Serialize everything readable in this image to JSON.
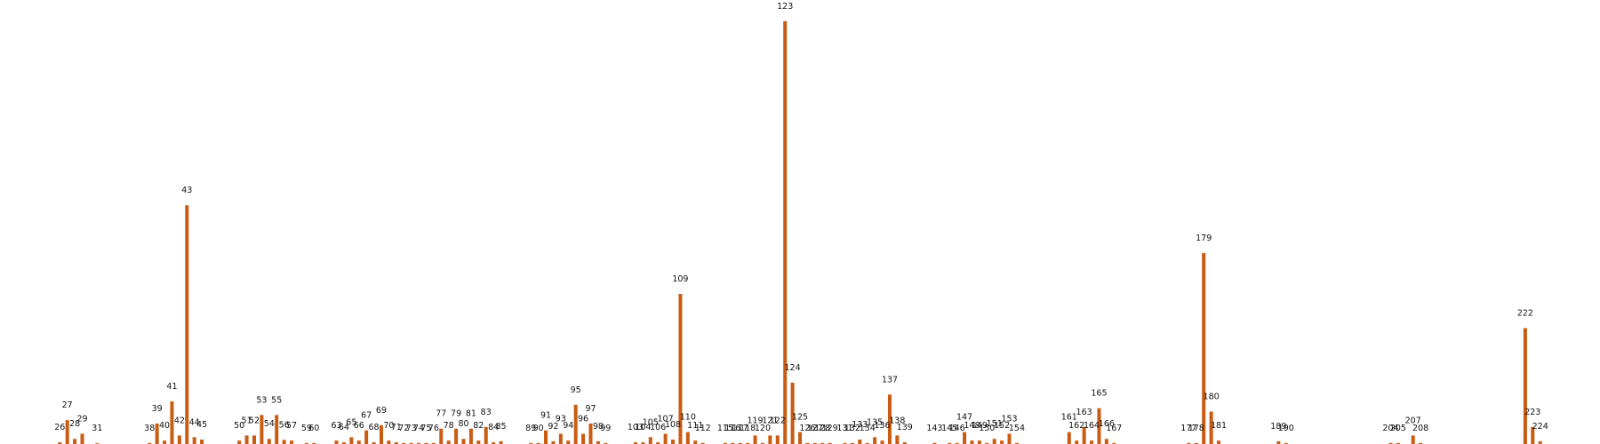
{
  "chart_data": {
    "type": "bar",
    "title": "",
    "xlabel": "",
    "ylabel": "",
    "bar_color": "#c95c12",
    "grid": false,
    "axes_visible": false,
    "xlim": [
      18,
      232
    ],
    "ylim": [
      0,
      125
    ],
    "bars": [
      {
        "x": 26,
        "value": 0.5,
        "label": "26"
      },
      {
        "x": 27,
        "value": 7,
        "label": "27"
      },
      {
        "x": 28,
        "value": 1.5,
        "label": "28"
      },
      {
        "x": 29,
        "value": 3,
        "label": "29"
      },
      {
        "x": 31,
        "value": 0,
        "label": "31"
      },
      {
        "x": 38,
        "value": 0.3,
        "label": "38"
      },
      {
        "x": 39,
        "value": 6,
        "label": "39"
      },
      {
        "x": 40,
        "value": 1,
        "label": "40"
      },
      {
        "x": 41,
        "value": 12.5,
        "label": "41"
      },
      {
        "x": 42,
        "value": 2.5,
        "label": "42"
      },
      {
        "x": 43,
        "value": 70,
        "label": "43"
      },
      {
        "x": 44,
        "value": 2,
        "label": "44"
      },
      {
        "x": 45,
        "value": 1.3,
        "label": "45"
      },
      {
        "x": 50,
        "value": 1,
        "label": "50"
      },
      {
        "x": 51,
        "value": 2.5,
        "label": "51"
      },
      {
        "x": 52,
        "value": 2.5,
        "label": "52"
      },
      {
        "x": 53,
        "value": 8.5,
        "label": "53"
      },
      {
        "x": 54,
        "value": 1.5,
        "label": "54"
      },
      {
        "x": 55,
        "value": 8.5,
        "label": "55"
      },
      {
        "x": 56,
        "value": 1.2,
        "label": "56"
      },
      {
        "x": 57,
        "value": 1,
        "label": "57"
      },
      {
        "x": 59,
        "value": 0.3,
        "label": "59"
      },
      {
        "x": 60,
        "value": 0.3,
        "label": "60"
      },
      {
        "x": 63,
        "value": 1,
        "label": "63"
      },
      {
        "x": 64,
        "value": 0.5,
        "label": "64"
      },
      {
        "x": 65,
        "value": 2,
        "label": "65"
      },
      {
        "x": 66,
        "value": 1,
        "label": "66"
      },
      {
        "x": 67,
        "value": 4,
        "label": "67"
      },
      {
        "x": 68,
        "value": 0.5,
        "label": "68"
      },
      {
        "x": 69,
        "value": 5.5,
        "label": "69"
      },
      {
        "x": 70,
        "value": 1,
        "label": "70"
      },
      {
        "x": 71,
        "value": 0.5,
        "label": "71"
      },
      {
        "x": 72,
        "value": 0.3,
        "label": "72"
      },
      {
        "x": 73,
        "value": 0.3,
        "label": "73"
      },
      {
        "x": 74,
        "value": 0.3,
        "label": "74"
      },
      {
        "x": 75,
        "value": 0.3,
        "label": "75"
      },
      {
        "x": 76,
        "value": 0.3,
        "label": "76"
      },
      {
        "x": 77,
        "value": 4.5,
        "label": "77"
      },
      {
        "x": 78,
        "value": 1,
        "label": "78"
      },
      {
        "x": 79,
        "value": 4.5,
        "label": "79"
      },
      {
        "x": 80,
        "value": 1.5,
        "label": "80"
      },
      {
        "x": 81,
        "value": 4.5,
        "label": "81"
      },
      {
        "x": 82,
        "value": 1,
        "label": "82"
      },
      {
        "x": 83,
        "value": 5,
        "label": "83"
      },
      {
        "x": 84,
        "value": 0.5,
        "label": "84"
      },
      {
        "x": 85,
        "value": 0.8,
        "label": "85"
      },
      {
        "x": 89,
        "value": 0.3,
        "label": "89"
      },
      {
        "x": 90,
        "value": 0.3,
        "label": "90"
      },
      {
        "x": 91,
        "value": 4,
        "label": "91"
      },
      {
        "x": 92,
        "value": 0.8,
        "label": "92"
      },
      {
        "x": 93,
        "value": 3,
        "label": "93"
      },
      {
        "x": 94,
        "value": 1,
        "label": "94"
      },
      {
        "x": 95,
        "value": 11.5,
        "label": "95"
      },
      {
        "x": 96,
        "value": 3,
        "label": "96"
      },
      {
        "x": 97,
        "value": 6,
        "label": "97"
      },
      {
        "x": 98,
        "value": 0.8,
        "label": "98"
      },
      {
        "x": 99,
        "value": 0.3,
        "label": "99"
      },
      {
        "x": 103,
        "value": 0.5,
        "label": "103"
      },
      {
        "x": 104,
        "value": 0.5,
        "label": "104"
      },
      {
        "x": 105,
        "value": 2,
        "label": "105"
      },
      {
        "x": 106,
        "value": 0.5,
        "label": "106"
      },
      {
        "x": 107,
        "value": 3,
        "label": "107"
      },
      {
        "x": 108,
        "value": 1.3,
        "label": "108"
      },
      {
        "x": 109,
        "value": 44,
        "label": "109"
      },
      {
        "x": 110,
        "value": 3.5,
        "label": "110"
      },
      {
        "x": 111,
        "value": 1,
        "label": "111"
      },
      {
        "x": 112,
        "value": 0.3,
        "label": "112"
      },
      {
        "x": 115,
        "value": 0.3,
        "label": "115"
      },
      {
        "x": 116,
        "value": 0.3,
        "label": "116"
      },
      {
        "x": 117,
        "value": 0.3,
        "label": "117"
      },
      {
        "x": 118,
        "value": 0.3,
        "label": "118"
      },
      {
        "x": 119,
        "value": 2.5,
        "label": "119"
      },
      {
        "x": 120,
        "value": 0.3,
        "label": "120"
      },
      {
        "x": 121,
        "value": 2.5,
        "label": "121"
      },
      {
        "x": 122,
        "value": 2.5,
        "label": "122"
      },
      {
        "x": 123,
        "value": 124,
        "label": "123"
      },
      {
        "x": 124,
        "value": 18,
        "label": "124"
      },
      {
        "x": 125,
        "value": 3.5,
        "label": "125"
      },
      {
        "x": 126,
        "value": 0.3,
        "label": "126"
      },
      {
        "x": 127,
        "value": 0.3,
        "label": "127"
      },
      {
        "x": 128,
        "value": 0.3,
        "label": "128"
      },
      {
        "x": 129,
        "value": 0.3,
        "label": "129"
      },
      {
        "x": 131,
        "value": 0.3,
        "label": "131"
      },
      {
        "x": 132,
        "value": 0.3,
        "label": "132"
      },
      {
        "x": 133,
        "value": 1.3,
        "label": "133"
      },
      {
        "x": 134,
        "value": 0.3,
        "label": "134"
      },
      {
        "x": 135,
        "value": 2,
        "label": "135"
      },
      {
        "x": 136,
        "value": 1,
        "label": "136"
      },
      {
        "x": 137,
        "value": 14.5,
        "label": "137"
      },
      {
        "x": 138,
        "value": 2.5,
        "label": "138"
      },
      {
        "x": 139,
        "value": 0.5,
        "label": "139"
      },
      {
        "x": 143,
        "value": 0.3,
        "label": "143"
      },
      {
        "x": 145,
        "value": 0.3,
        "label": "145"
      },
      {
        "x": 146,
        "value": 0.3,
        "label": "146"
      },
      {
        "x": 147,
        "value": 3.5,
        "label": "147"
      },
      {
        "x": 148,
        "value": 1,
        "label": "148"
      },
      {
        "x": 149,
        "value": 1,
        "label": "149"
      },
      {
        "x": 150,
        "value": 0.3,
        "label": "150"
      },
      {
        "x": 151,
        "value": 1.5,
        "label": "151"
      },
      {
        "x": 152,
        "value": 1,
        "label": "152"
      },
      {
        "x": 153,
        "value": 3,
        "label": "153"
      },
      {
        "x": 154,
        "value": 0.3,
        "label": "154"
      },
      {
        "x": 161,
        "value": 3.5,
        "label": "161"
      },
      {
        "x": 162,
        "value": 1,
        "label": "162"
      },
      {
        "x": 163,
        "value": 5,
        "label": "163"
      },
      {
        "x": 164,
        "value": 1,
        "label": "164"
      },
      {
        "x": 165,
        "value": 10.5,
        "label": "165"
      },
      {
        "x": 166,
        "value": 1.5,
        "label": "166"
      },
      {
        "x": 167,
        "value": 0.3,
        "label": "167"
      },
      {
        "x": 177,
        "value": 0.3,
        "label": "177"
      },
      {
        "x": 178,
        "value": 0.3,
        "label": "178"
      },
      {
        "x": 179,
        "value": 56,
        "label": "179"
      },
      {
        "x": 180,
        "value": 9.5,
        "label": "180"
      },
      {
        "x": 181,
        "value": 1,
        "label": "181"
      },
      {
        "x": 189,
        "value": 0.8,
        "label": "189"
      },
      {
        "x": 190,
        "value": 0.3,
        "label": "190"
      },
      {
        "x": 204,
        "value": 0.3,
        "label": "204"
      },
      {
        "x": 205,
        "value": 0.3,
        "label": "205"
      },
      {
        "x": 207,
        "value": 2.5,
        "label": "207"
      },
      {
        "x": 208,
        "value": 0.3,
        "label": "208"
      },
      {
        "x": 222,
        "value": 34,
        "label": "222"
      },
      {
        "x": 223,
        "value": 5,
        "label": "223"
      },
      {
        "x": 224,
        "value": 0.8,
        "label": "224"
      }
    ]
  }
}
